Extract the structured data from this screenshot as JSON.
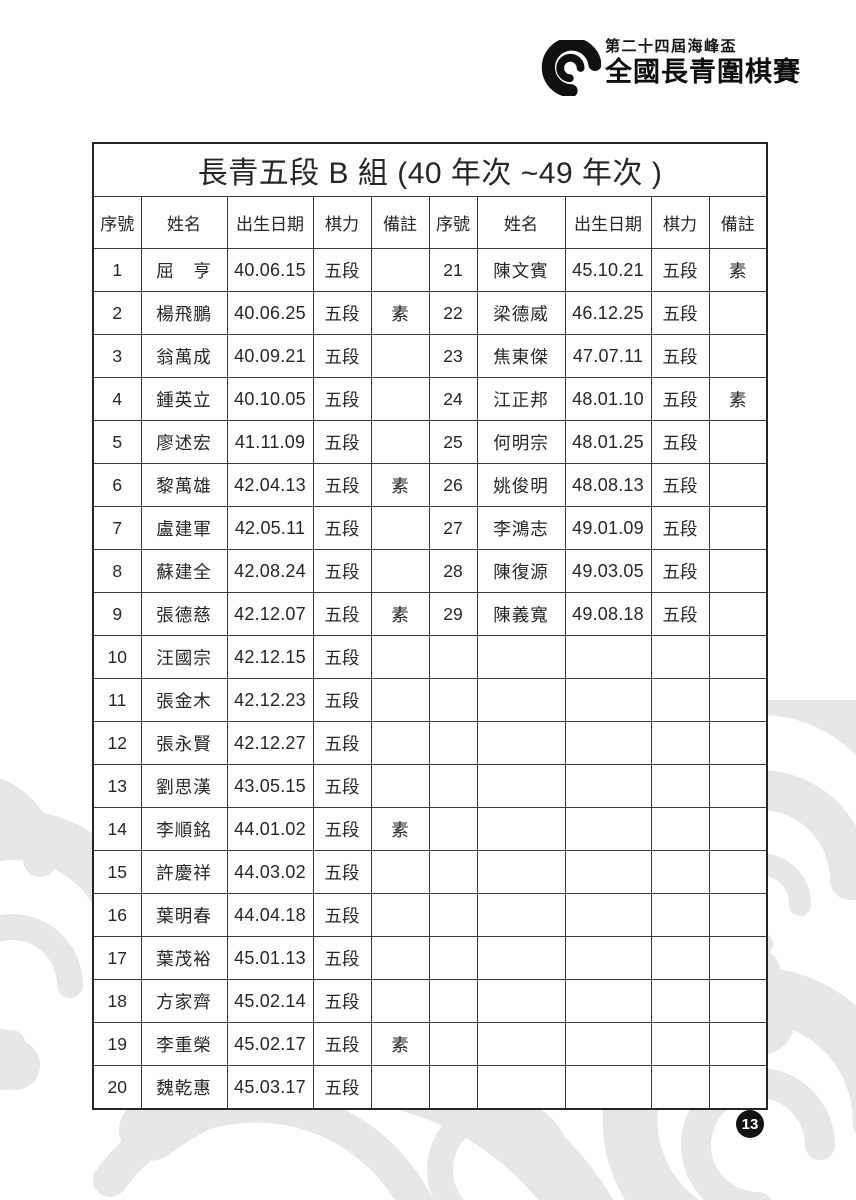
{
  "logo": {
    "line1": "第二十四屆海峰盃",
    "line2": "全國長青圍棋賽"
  },
  "table": {
    "title": "長青五段 B 組 (40 年次 ~49 年次 )",
    "headers": [
      "序號",
      "姓名",
      "出生日期",
      "棋力",
      "備註"
    ],
    "left_rows": [
      {
        "no": "1",
        "name": "屈　亨",
        "dob": "40.06.15",
        "rank": "五段",
        "note": ""
      },
      {
        "no": "2",
        "name": "楊飛鵬",
        "dob": "40.06.25",
        "rank": "五段",
        "note": "素"
      },
      {
        "no": "3",
        "name": "翁萬成",
        "dob": "40.09.21",
        "rank": "五段",
        "note": ""
      },
      {
        "no": "4",
        "name": "鍾英立",
        "dob": "40.10.05",
        "rank": "五段",
        "note": ""
      },
      {
        "no": "5",
        "name": "廖述宏",
        "dob": "41.11.09",
        "rank": "五段",
        "note": ""
      },
      {
        "no": "6",
        "name": "黎萬雄",
        "dob": "42.04.13",
        "rank": "五段",
        "note": "素"
      },
      {
        "no": "7",
        "name": "盧建軍",
        "dob": "42.05.11",
        "rank": "五段",
        "note": ""
      },
      {
        "no": "8",
        "name": "蘇建全",
        "dob": "42.08.24",
        "rank": "五段",
        "note": ""
      },
      {
        "no": "9",
        "name": "張德慈",
        "dob": "42.12.07",
        "rank": "五段",
        "note": "素"
      },
      {
        "no": "10",
        "name": "汪國宗",
        "dob": "42.12.15",
        "rank": "五段",
        "note": ""
      },
      {
        "no": "11",
        "name": "張金木",
        "dob": "42.12.23",
        "rank": "五段",
        "note": ""
      },
      {
        "no": "12",
        "name": "張永賢",
        "dob": "42.12.27",
        "rank": "五段",
        "note": ""
      },
      {
        "no": "13",
        "name": "劉思漢",
        "dob": "43.05.15",
        "rank": "五段",
        "note": ""
      },
      {
        "no": "14",
        "name": "李順銘",
        "dob": "44.01.02",
        "rank": "五段",
        "note": "素"
      },
      {
        "no": "15",
        "name": "許慶祥",
        "dob": "44.03.02",
        "rank": "五段",
        "note": ""
      },
      {
        "no": "16",
        "name": "葉明春",
        "dob": "44.04.18",
        "rank": "五段",
        "note": ""
      },
      {
        "no": "17",
        "name": "葉茂裕",
        "dob": "45.01.13",
        "rank": "五段",
        "note": ""
      },
      {
        "no": "18",
        "name": "方家齊",
        "dob": "45.02.14",
        "rank": "五段",
        "note": ""
      },
      {
        "no": "19",
        "name": "李重榮",
        "dob": "45.02.17",
        "rank": "五段",
        "note": "素"
      },
      {
        "no": "20",
        "name": "魏乾惠",
        "dob": "45.03.17",
        "rank": "五段",
        "note": ""
      }
    ],
    "right_rows": [
      {
        "no": "21",
        "name": "陳文賓",
        "dob": "45.10.21",
        "rank": "五段",
        "note": "素"
      },
      {
        "no": "22",
        "name": "梁德威",
        "dob": "46.12.25",
        "rank": "五段",
        "note": ""
      },
      {
        "no": "23",
        "name": "焦東傑",
        "dob": "47.07.11",
        "rank": "五段",
        "note": ""
      },
      {
        "no": "24",
        "name": "江正邦",
        "dob": "48.01.10",
        "rank": "五段",
        "note": "素"
      },
      {
        "no": "25",
        "name": "何明宗",
        "dob": "48.01.25",
        "rank": "五段",
        "note": ""
      },
      {
        "no": "26",
        "name": "姚俊明",
        "dob": "48.08.13",
        "rank": "五段",
        "note": ""
      },
      {
        "no": "27",
        "name": "李鴻志",
        "dob": "49.01.09",
        "rank": "五段",
        "note": ""
      },
      {
        "no": "28",
        "name": "陳復源",
        "dob": "49.03.05",
        "rank": "五段",
        "note": ""
      },
      {
        "no": "29",
        "name": "陳義寬",
        "dob": "49.08.18",
        "rank": "五段",
        "note": ""
      },
      {
        "no": "",
        "name": "",
        "dob": "",
        "rank": "",
        "note": ""
      },
      {
        "no": "",
        "name": "",
        "dob": "",
        "rank": "",
        "note": ""
      },
      {
        "no": "",
        "name": "",
        "dob": "",
        "rank": "",
        "note": ""
      },
      {
        "no": "",
        "name": "",
        "dob": "",
        "rank": "",
        "note": ""
      },
      {
        "no": "",
        "name": "",
        "dob": "",
        "rank": "",
        "note": ""
      },
      {
        "no": "",
        "name": "",
        "dob": "",
        "rank": "",
        "note": ""
      },
      {
        "no": "",
        "name": "",
        "dob": "",
        "rank": "",
        "note": ""
      },
      {
        "no": "",
        "name": "",
        "dob": "",
        "rank": "",
        "note": ""
      },
      {
        "no": "",
        "name": "",
        "dob": "",
        "rank": "",
        "note": ""
      },
      {
        "no": "",
        "name": "",
        "dob": "",
        "rank": "",
        "note": ""
      },
      {
        "no": "",
        "name": "",
        "dob": "",
        "rank": "",
        "note": ""
      }
    ]
  },
  "page_number": "13",
  "colors": {
    "text": "#262626",
    "border": "#3a3a3a",
    "badge_bg": "#111111",
    "watermark": "#e7e7e7"
  }
}
